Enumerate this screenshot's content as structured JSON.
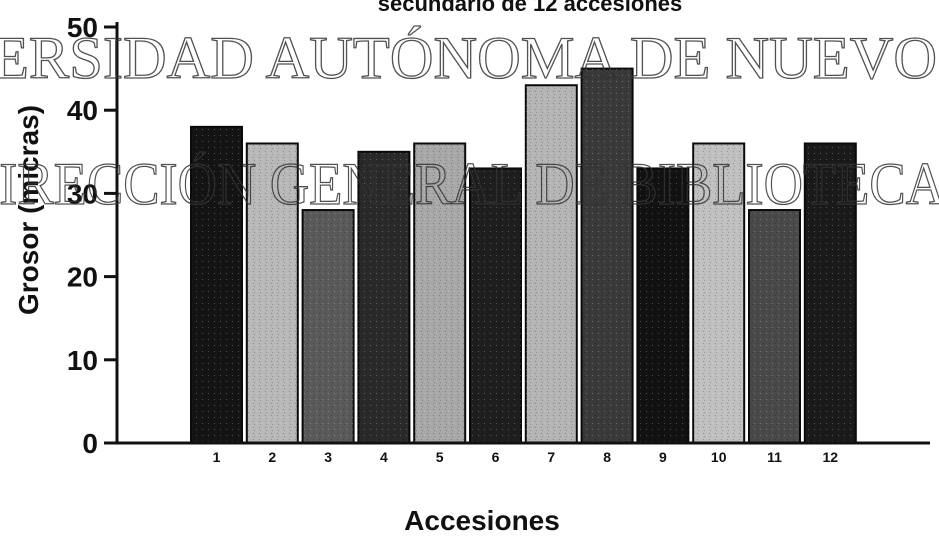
{
  "chart_data": {
    "type": "bar",
    "title": "secundario de 12 accesiones",
    "xlabel": "Accesiones",
    "ylabel": "Grosor (micras)",
    "ylim": [
      0,
      50
    ],
    "yticks": [
      0,
      10,
      20,
      30,
      40,
      50
    ],
    "categories": [
      "1",
      "2",
      "3",
      "4",
      "5",
      "6",
      "7",
      "8",
      "9",
      "10",
      "11",
      "12"
    ],
    "values": [
      38,
      36,
      28,
      35,
      36,
      33,
      43,
      45,
      33,
      36,
      28,
      36
    ],
    "bar_colors": [
      "#141414",
      "#b8b8b8",
      "#5a5a5a",
      "#2a2a2a",
      "#a8a8a8",
      "#1e1e1e",
      "#b4b4b4",
      "#3a3a3a",
      "#121212",
      "#c0c0c0",
      "#4a4a4a",
      "#1a1a1a"
    ],
    "grid": false,
    "legend": "none"
  },
  "watermark": {
    "line1": "ERSIDAD AUTÓNOMA DE NUEVO",
    "line2": "DIRECCIÓN GENERAL DE BIBLIOTECA"
  }
}
